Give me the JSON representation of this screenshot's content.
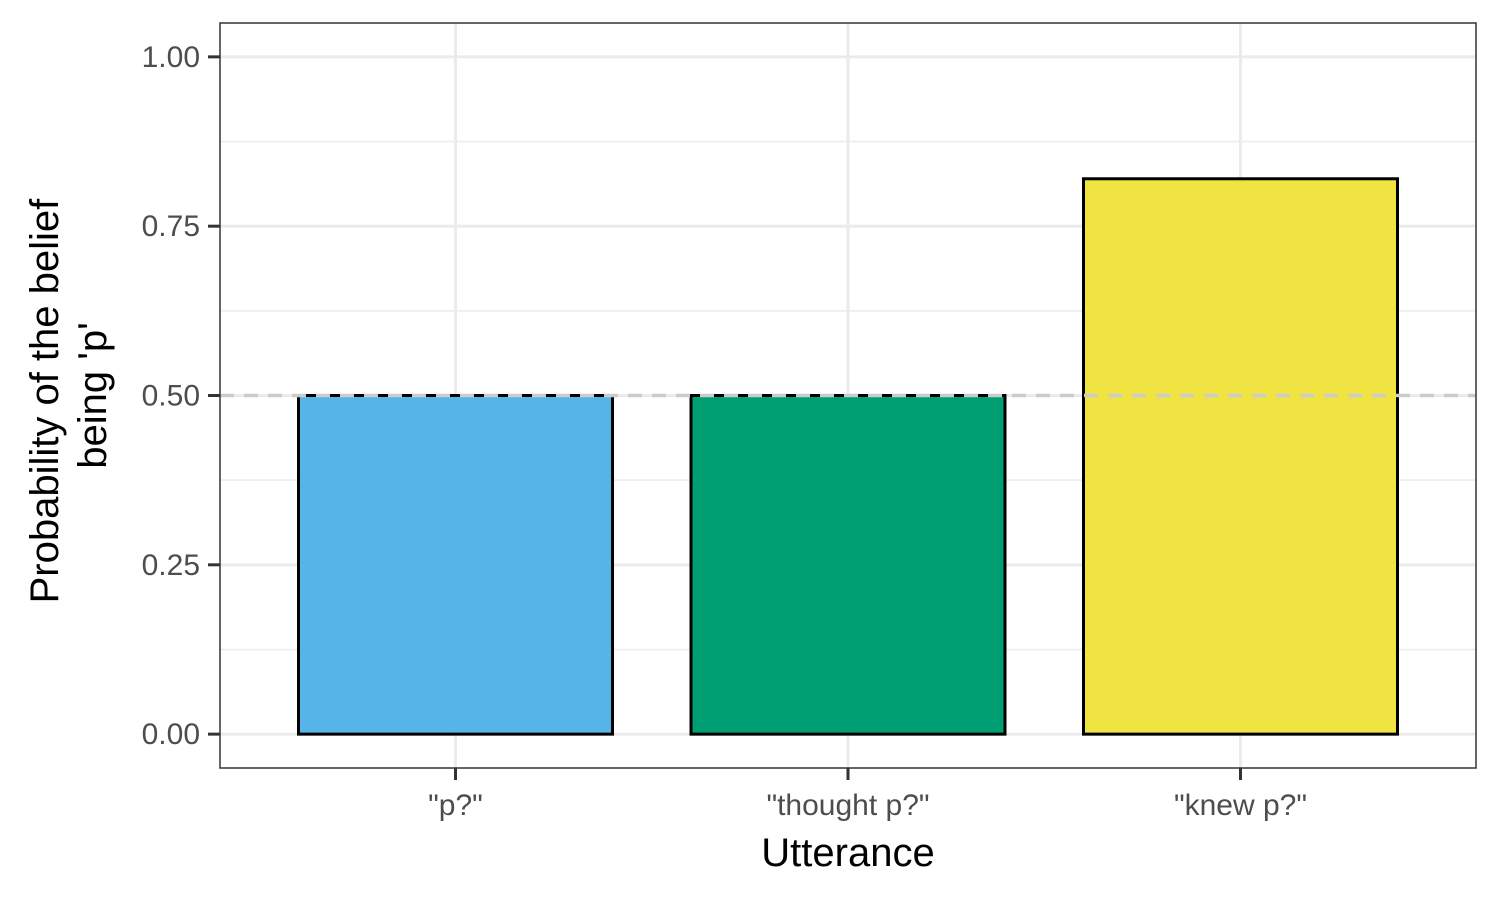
{
  "chart_data": {
    "type": "bar",
    "title": "",
    "xlabel": "Utterance",
    "ylabel_lines": [
      "Probability of the belief",
      "being 'p'"
    ],
    "categories": [
      "\"p?\"",
      "\"thought p?\"",
      "\"knew p?\""
    ],
    "values": [
      0.5,
      0.5,
      0.82
    ],
    "bar_colors": [
      "#56b4e9",
      "#009e73",
      "#f0e442"
    ],
    "bar_outline_color": "#000000",
    "ylim": [
      -0.05,
      1.05
    ],
    "yticks": [
      0,
      0.25,
      0.5,
      0.75,
      1
    ],
    "ytick_labels": [
      "0.00",
      "0.25",
      "0.50",
      "0.75",
      "1.00"
    ],
    "reference_line": {
      "y": 0.5,
      "style": "dashed",
      "color": "#cccccc"
    },
    "grid": true,
    "legend": "none"
  }
}
